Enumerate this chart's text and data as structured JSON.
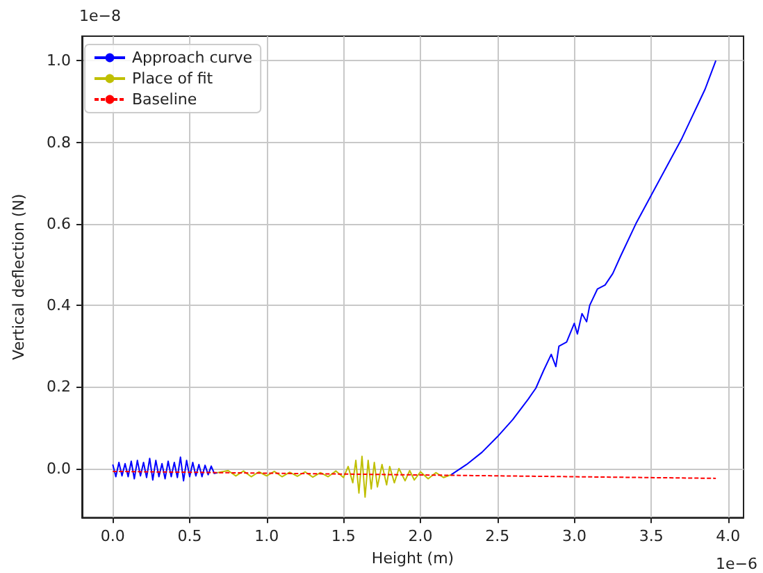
{
  "chart_data": {
    "type": "line",
    "xlabel": "Height (m)",
    "ylabel": "Vertical deflection (N)",
    "annotations": [
      "1e−8",
      "1e−6"
    ],
    "xlim": [
      -0.2,
      4.1
    ],
    "ylim": [
      -0.12,
      1.06
    ],
    "xticks": [
      {
        "value": 0,
        "label": "0.0"
      },
      {
        "value": 0.5,
        "label": "0.5"
      },
      {
        "value": 1,
        "label": "1.0"
      },
      {
        "value": 1.5,
        "label": "1.5"
      },
      {
        "value": 2,
        "label": "2.0"
      },
      {
        "value": 2.5,
        "label": "2.5"
      },
      {
        "value": 3,
        "label": "3.0"
      },
      {
        "value": 3.5,
        "label": "3.5"
      },
      {
        "value": 4,
        "label": "4.0"
      }
    ],
    "yticks": [
      {
        "value": 0,
        "label": "0.0"
      },
      {
        "value": 0.2,
        "label": "0.2"
      },
      {
        "value": 0.4,
        "label": "0.4"
      },
      {
        "value": 0.6,
        "label": "0.6"
      },
      {
        "value": 0.8,
        "label": "0.8"
      },
      {
        "value": 1,
        "label": "1.0"
      }
    ],
    "grid": true,
    "legend": "top left",
    "marker": "none",
    "series": [
      {
        "name": "Approach curve",
        "color": "#0000ff",
        "x": [
          0,
          0.02,
          0.04,
          0.06,
          0.08,
          0.1,
          0.12,
          0.14,
          0.16,
          0.18,
          0.2,
          0.22,
          0.24,
          0.26,
          0.28,
          0.3,
          0.32,
          0.34,
          0.36,
          0.38,
          0.4,
          0.42,
          0.44,
          0.46,
          0.48,
          0.5,
          0.52,
          0.54,
          0.56,
          0.58,
          0.6,
          0.62,
          0.64,
          0.66,
          0.68,
          1.4,
          2.2,
          2.3,
          2.4,
          2.5,
          2.6,
          2.7,
          2.75,
          2.8,
          2.85,
          2.88,
          2.9,
          2.95,
          3.0,
          3.02,
          3.05,
          3.08,
          3.1,
          3.15,
          3.2,
          3.25,
          3.3,
          3.4,
          3.5,
          3.6,
          3.7,
          3.75,
          3.8,
          3.85,
          3.92
        ],
        "values": [
          0.01,
          -0.02,
          0.015,
          -0.018,
          0.012,
          -0.02,
          0.018,
          -0.025,
          0.02,
          -0.018,
          0.015,
          -0.022,
          0.025,
          -0.028,
          0.02,
          -0.02,
          0.012,
          -0.025,
          0.018,
          -0.02,
          0.015,
          -0.022,
          0.028,
          -0.03,
          0.02,
          -0.02,
          0.015,
          -0.018,
          0.01,
          -0.02,
          0.008,
          -0.015,
          0.006,
          -0.012,
          -0.01,
          null,
          -0.015,
          0.01,
          0.04,
          0.078,
          0.12,
          0.17,
          0.197,
          0.24,
          0.28,
          0.25,
          0.3,
          0.31,
          0.356,
          0.33,
          0.38,
          0.36,
          0.4,
          0.44,
          0.45,
          0.478,
          0.52,
          0.6,
          0.67,
          0.74,
          0.81,
          0.85,
          0.89,
          0.93,
          1.0
        ]
      },
      {
        "name": "Place of fit",
        "color": "#bfbf00",
        "x": [
          0.68,
          0.75,
          0.8,
          0.85,
          0.9,
          0.95,
          1.0,
          1.05,
          1.1,
          1.15,
          1.2,
          1.25,
          1.3,
          1.35,
          1.4,
          1.45,
          1.5,
          1.53,
          1.56,
          1.58,
          1.6,
          1.62,
          1.64,
          1.66,
          1.68,
          1.7,
          1.72,
          1.75,
          1.78,
          1.8,
          1.83,
          1.86,
          1.9,
          1.93,
          1.96,
          2.0,
          2.05,
          2.1,
          2.15,
          2.2
        ],
        "values": [
          -0.01,
          -0.005,
          -0.018,
          -0.006,
          -0.02,
          -0.008,
          -0.018,
          -0.007,
          -0.02,
          -0.009,
          -0.019,
          -0.008,
          -0.021,
          -0.01,
          -0.02,
          -0.006,
          -0.022,
          0.005,
          -0.035,
          0.02,
          -0.06,
          0.03,
          -0.07,
          0.02,
          -0.05,
          0.015,
          -0.045,
          0.01,
          -0.04,
          0.005,
          -0.035,
          0.0,
          -0.03,
          -0.005,
          -0.028,
          -0.008,
          -0.025,
          -0.01,
          -0.022,
          -0.015
        ]
      },
      {
        "name": "Baseline",
        "color": "#ff0000",
        "line_style": "dashed",
        "x": [
          0,
          3.92
        ],
        "values": [
          -0.007,
          -0.024
        ]
      }
    ]
  }
}
